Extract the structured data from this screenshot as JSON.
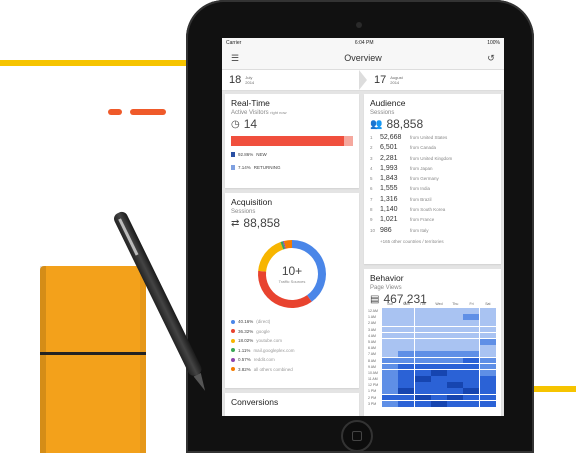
{
  "status": {
    "carrier": "Carrier",
    "time": "6:04 PM",
    "battery": "100%"
  },
  "app": {
    "title": "Overview"
  },
  "dates": {
    "start": {
      "day": "18",
      "month": "July",
      "year": "2014"
    },
    "end": {
      "day": "17",
      "month": "August",
      "year": "2014"
    }
  },
  "realtime": {
    "title": "Real-Time",
    "subtitle": "Active Visitors",
    "subtitle_note": "right now",
    "count": "14",
    "new_share": 0.9286,
    "legend": [
      {
        "value": "92.86%",
        "label": "NEW",
        "color": "#2a4fa3"
      },
      {
        "value": "7.14%",
        "label": "RETURNING",
        "color": "#7fa0e0"
      }
    ]
  },
  "audience": {
    "title": "Audience",
    "subtitle": "Sessions",
    "count": "88,858",
    "rows": [
      {
        "n": "1",
        "v": "52,668",
        "f": "from United States"
      },
      {
        "n": "2",
        "v": "6,501",
        "f": "from Canada"
      },
      {
        "n": "3",
        "v": "2,281",
        "f": "from United Kingdom"
      },
      {
        "n": "4",
        "v": "1,993",
        "f": "from Japan"
      },
      {
        "n": "5",
        "v": "1,843",
        "f": "from Germany"
      },
      {
        "n": "6",
        "v": "1,555",
        "f": "from India"
      },
      {
        "n": "7",
        "v": "1,316",
        "f": "from Brazil"
      },
      {
        "n": "8",
        "v": "1,140",
        "f": "from South Korea"
      },
      {
        "n": "9",
        "v": "1,021",
        "f": "from France"
      },
      {
        "n": "10",
        "v": "986",
        "f": "from Italy"
      }
    ],
    "more": "+165 other countries / territories"
  },
  "acquisition": {
    "title": "Acquisition",
    "subtitle": "Sessions",
    "count": "88,858",
    "donut_value": "10+",
    "donut_label": "Traffic Sources",
    "sources": [
      {
        "pct": "40.16%",
        "name": "(direct)",
        "share": 40.16,
        "color": "#4a86e8"
      },
      {
        "pct": "36.32%",
        "name": "google",
        "share": 36.32,
        "color": "#e8432f"
      },
      {
        "pct": "18.02%",
        "name": "youtube.com",
        "share": 18.02,
        "color": "#f7b500"
      },
      {
        "pct": "1.11%",
        "name": "mail.googleplex.com",
        "share": 1.11,
        "color": "#3aa757"
      },
      {
        "pct": "0.57%",
        "name": "reddit.com",
        "share": 0.57,
        "color": "#8e44ad"
      },
      {
        "pct": "3.82%",
        "name": "all others combined",
        "share": 3.82,
        "color": "#f57c00"
      }
    ]
  },
  "behavior": {
    "title": "Behavior",
    "subtitle": "Page Views",
    "count": "467,231",
    "days": [
      "Sun",
      "Mon",
      "Tue",
      "Wed",
      "Thu",
      "Fri",
      "Sat"
    ],
    "hours": [
      "12 AM",
      "1 AM",
      "2 AM",
      "3 AM",
      "4 AM",
      "5 AM",
      "6 AM",
      "7 AM",
      "8 AM",
      "9 AM",
      "10 AM",
      "11 AM",
      "12 PM",
      "1 PM",
      "2 PM",
      "3 PM"
    ],
    "levels": [
      [
        1,
        1,
        1,
        1,
        1,
        1,
        1
      ],
      [
        1,
        1,
        1,
        1,
        1,
        2,
        1
      ],
      [
        1,
        1,
        1,
        1,
        1,
        1,
        1
      ],
      [
        1,
        1,
        1,
        1,
        1,
        1,
        1
      ],
      [
        1,
        1,
        1,
        1,
        1,
        1,
        1
      ],
      [
        1,
        1,
        1,
        1,
        1,
        1,
        2
      ],
      [
        1,
        1,
        1,
        1,
        1,
        1,
        1
      ],
      [
        1,
        2,
        2,
        2,
        2,
        2,
        1
      ],
      [
        2,
        2,
        2,
        2,
        2,
        3,
        2
      ],
      [
        2,
        3,
        3,
        3,
        3,
        3,
        2
      ],
      [
        2,
        3,
        3,
        4,
        3,
        3,
        2
      ],
      [
        2,
        3,
        4,
        3,
        3,
        3,
        3
      ],
      [
        2,
        3,
        3,
        3,
        4,
        3,
        3
      ],
      [
        2,
        4,
        3,
        3,
        3,
        4,
        3
      ],
      [
        3,
        3,
        4,
        3,
        4,
        3,
        3
      ],
      [
        2,
        3,
        3,
        4,
        3,
        3,
        3
      ]
    ]
  },
  "conversions": {
    "title": "Conversions"
  }
}
